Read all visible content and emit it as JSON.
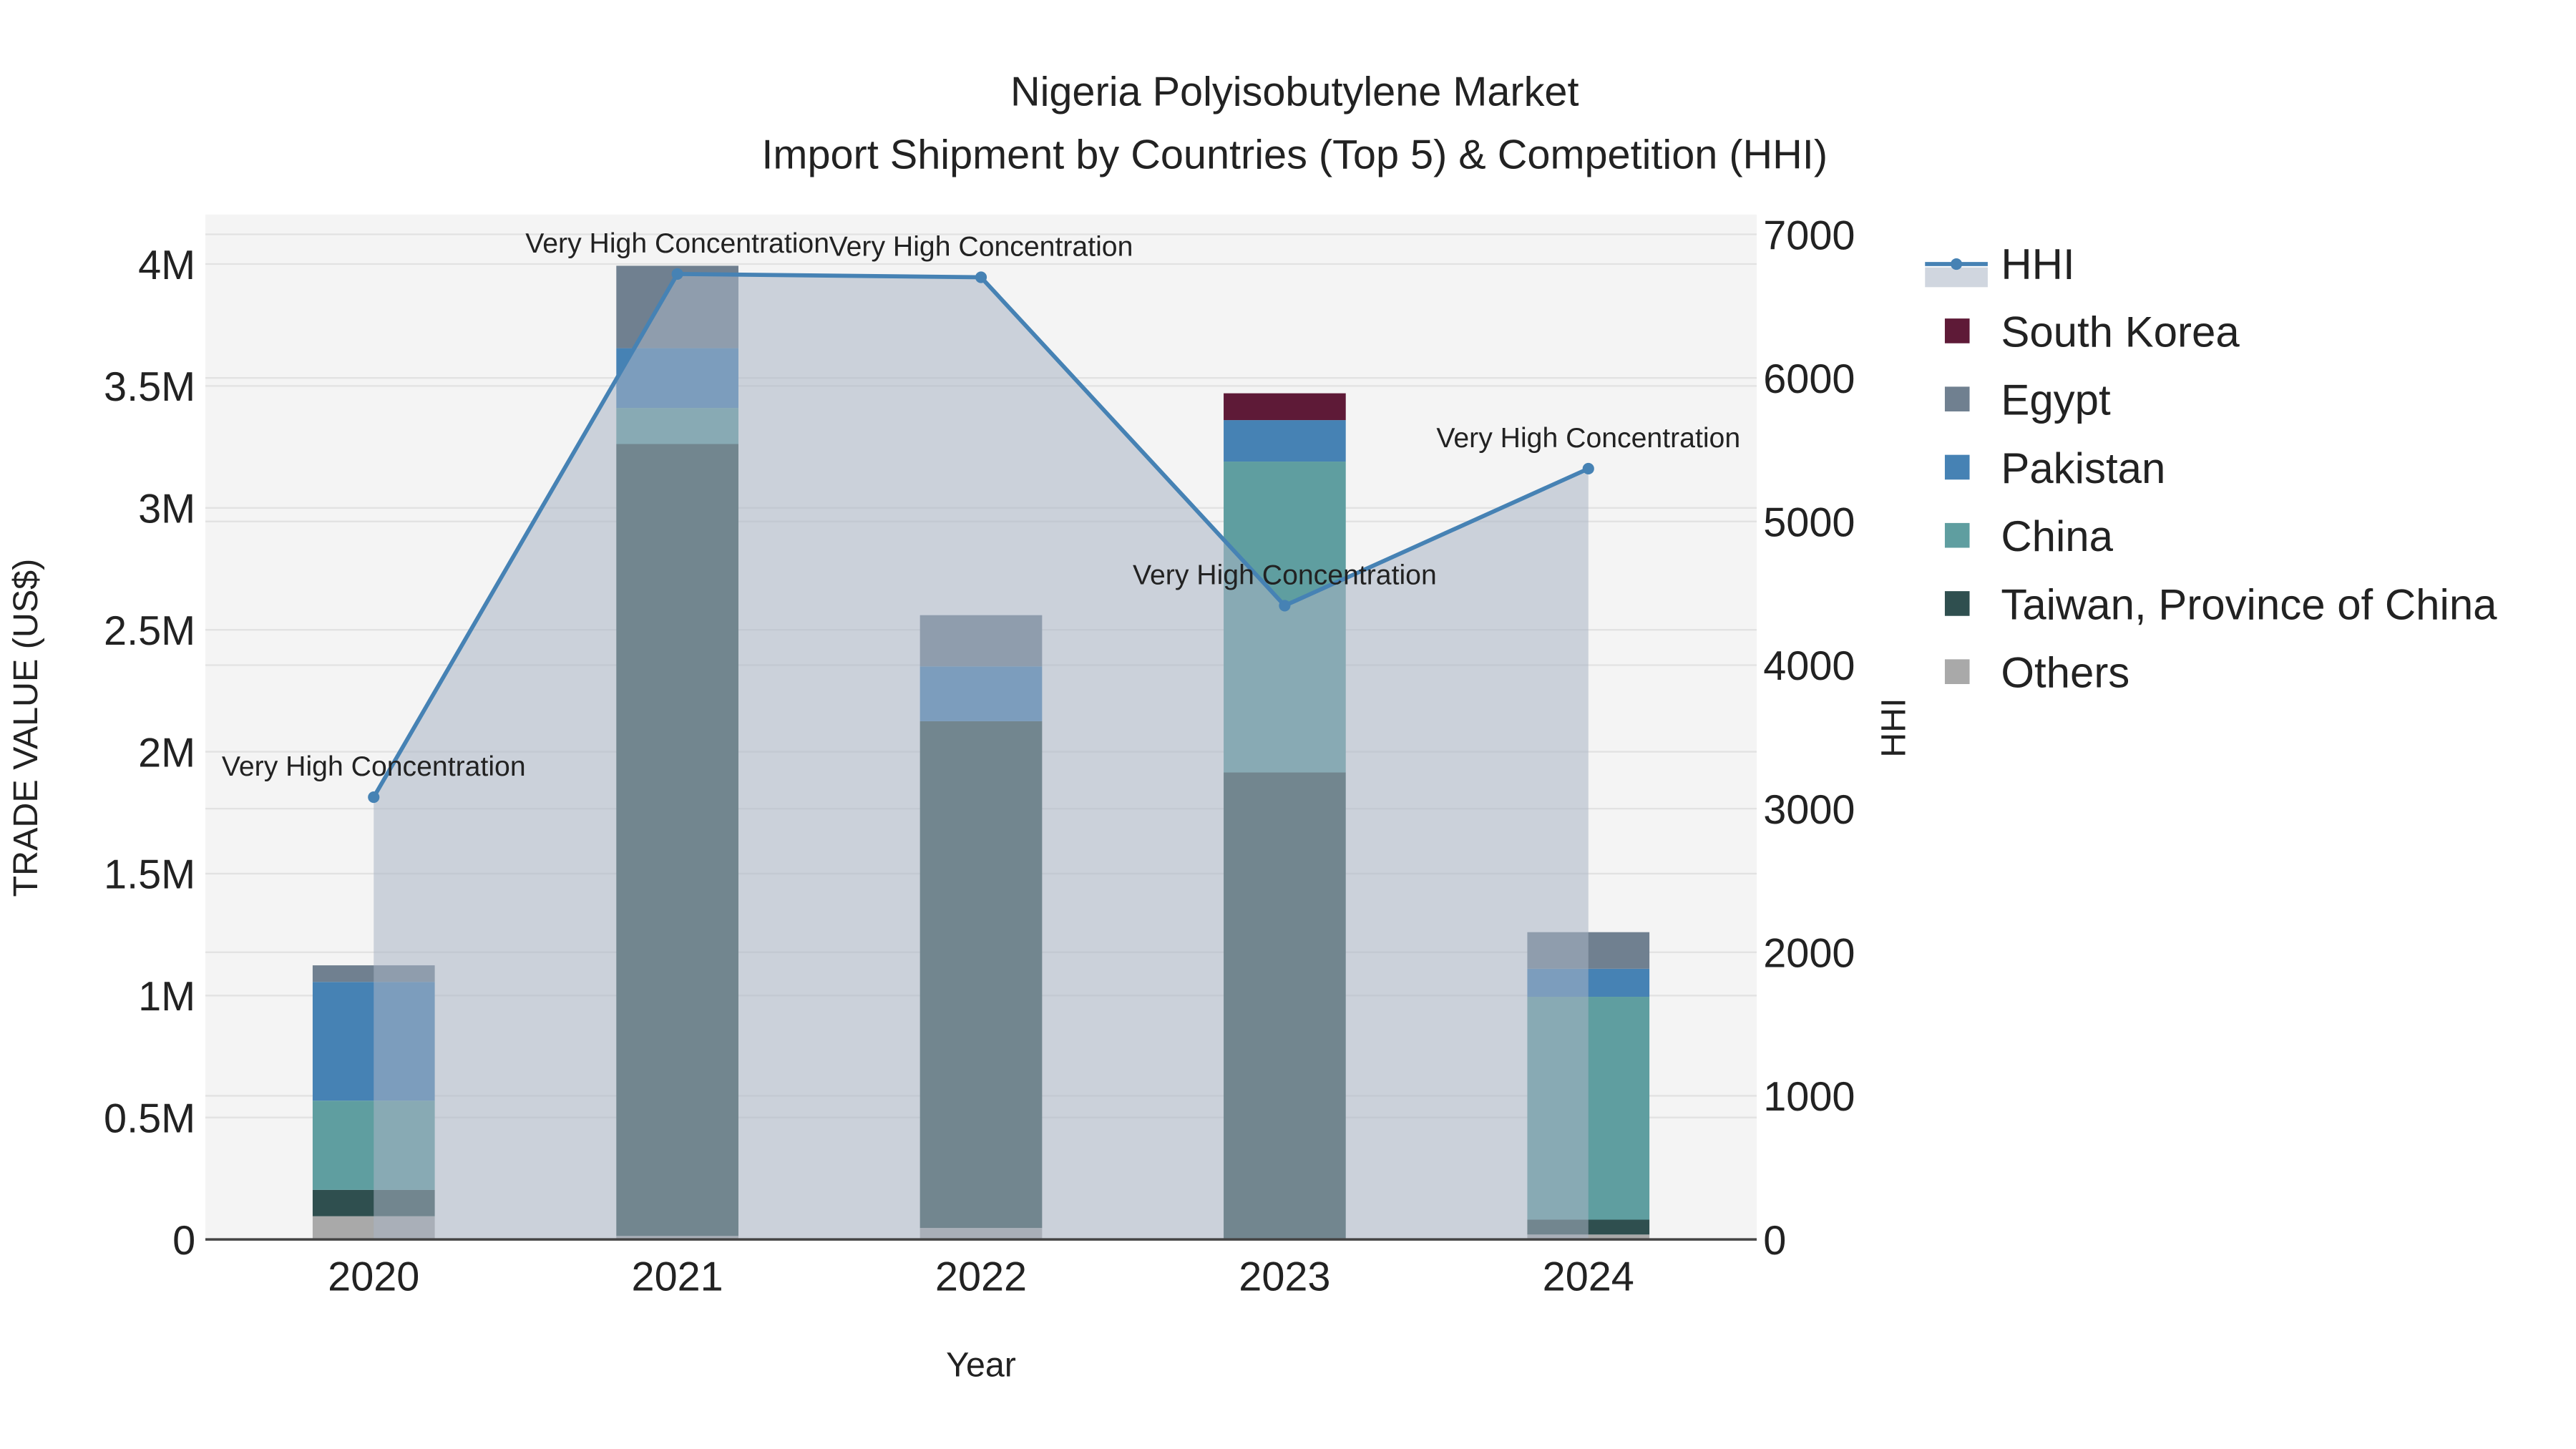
{
  "chart_data": {
    "type": "bar",
    "title": "Nigeria Polyisobutylene Market",
    "subtitle": "Import Shipment by Countries (Top 5) & Competition (HHI)",
    "xlabel": "Year",
    "ylabel": "TRADE VALUE (US$)",
    "y2label": "HHI",
    "ylim": [
      0,
      4200000
    ],
    "y2lim": [
      0,
      7200
    ],
    "yticks": [
      0,
      500000,
      1000000,
      1500000,
      2000000,
      2500000,
      3000000,
      3500000,
      4000000
    ],
    "ytick_labels": [
      "0",
      "0.5M",
      "1M",
      "1.5M",
      "2M",
      "2.5M",
      "3M",
      "3.5M",
      "4M"
    ],
    "y2ticks": [
      0,
      1000,
      2000,
      3000,
      4000,
      5000,
      6000,
      7000
    ],
    "y2tick_labels": [
      "0",
      "1000",
      "2000",
      "3000",
      "4000",
      "5000",
      "6000",
      "7000"
    ],
    "categories": [
      "2020",
      "2021",
      "2022",
      "2023",
      "2024"
    ],
    "stack_order": [
      "Others",
      "Taiwan, Province of China",
      "China",
      "Pakistan",
      "Egypt",
      "South Korea"
    ],
    "series": [
      {
        "name": "South Korea",
        "color": "#5e1a37",
        "values": [
          0,
          0,
          0,
          110000,
          0
        ]
      },
      {
        "name": "Egypt",
        "color": "#708090",
        "values": [
          68000,
          338000,
          210000,
          0,
          150000
        ]
      },
      {
        "name": "Pakistan",
        "color": "#4682b4",
        "values": [
          487000,
          245000,
          225000,
          170000,
          115000
        ]
      },
      {
        "name": "China",
        "color": "#5f9ea0",
        "values": [
          366000,
          148000,
          0,
          1275000,
          914000
        ]
      },
      {
        "name": "Taiwan, Province of China",
        "color": "#2f4f4f",
        "values": [
          108000,
          3248000,
          2078000,
          1915000,
          61000
        ]
      },
      {
        "name": "Others",
        "color": "#a9a9a9",
        "values": [
          95000,
          14000,
          47000,
          0,
          20000
        ]
      }
    ],
    "hhi": {
      "name": "HHI",
      "color": "#4682b4",
      "values": [
        3080,
        6724,
        6701,
        4414,
        5368
      ],
      "labels": [
        "Very High Concentration",
        "Very High Concentration",
        "Very High Concentration",
        "Very High Concentration",
        "Very High Concentration"
      ]
    },
    "legend_position": "right",
    "grid": true
  }
}
